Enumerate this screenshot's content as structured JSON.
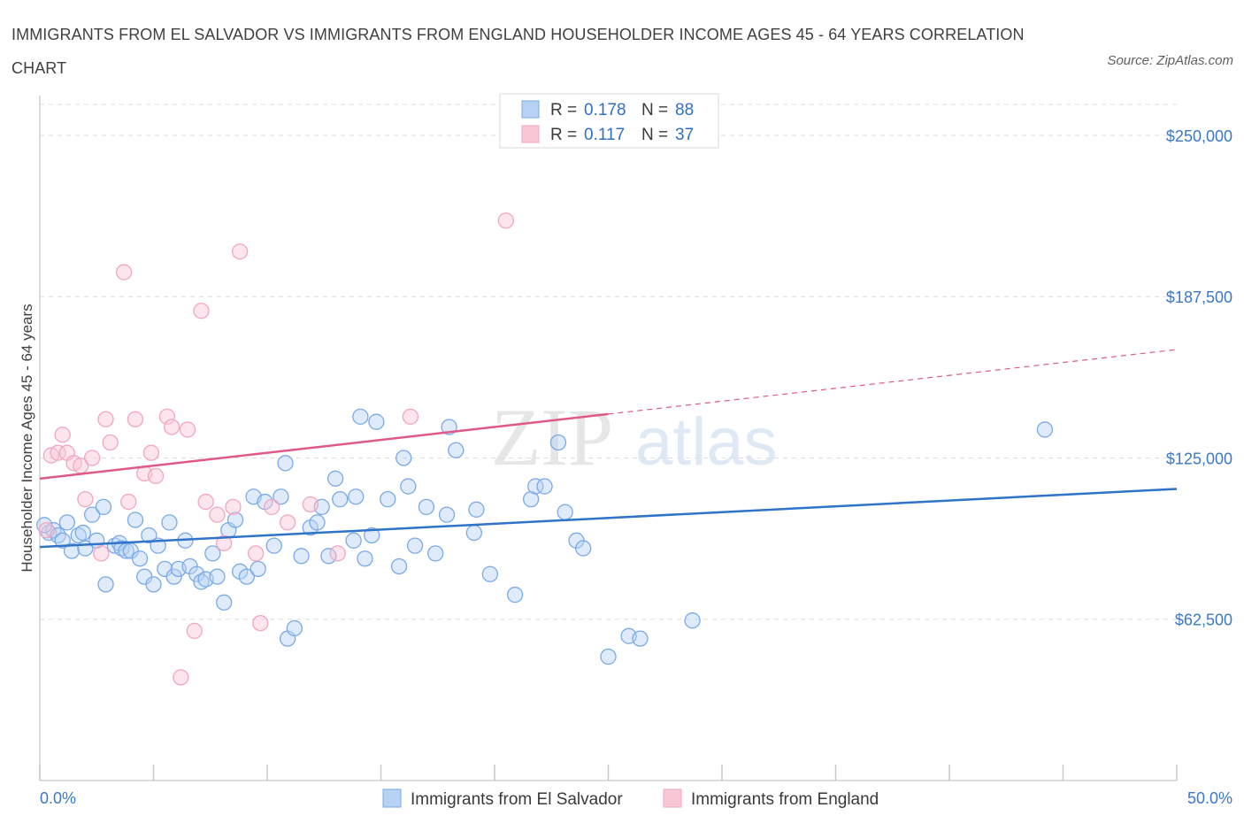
{
  "title": "IMMIGRANTS FROM EL SALVADOR VS IMMIGRANTS FROM ENGLAND HOUSEHOLDER INCOME AGES 45 - 64 YEARS CORRELATION CHART",
  "source": "Source: ZipAtlas.com",
  "watermark": {
    "zip": "ZIP",
    "atlas": "atlas"
  },
  "legend": {
    "r_label": "R =",
    "n_label": "N =",
    "rows": [
      {
        "r": "0.178",
        "n": "88"
      },
      {
        "r": "0.117",
        "n": "37"
      }
    ]
  },
  "chart_data": {
    "type": "scatter",
    "xlabel": "",
    "ylabel": "Householder Income Ages 45 - 64 years",
    "xlim": [
      0,
      50
    ],
    "ylim": [
      0,
      262000
    ],
    "x_tick_labels": {
      "left": "0.0%",
      "right": "50.0%"
    },
    "y_ticks": [
      {
        "value": 62500,
        "label": "$62,500"
      },
      {
        "value": 125000,
        "label": "$125,000"
      },
      {
        "value": 187500,
        "label": "$187,500"
      },
      {
        "value": 250000,
        "label": "$250,000"
      }
    ],
    "grid": "horizontal dashed",
    "series": [
      {
        "name": "Immigrants from El Salvador",
        "color": "#7aaae8",
        "line_color": "#2f74c8",
        "trend": {
          "x0": 0,
          "y0": 90500,
          "x1": 50,
          "y1": 113000,
          "solid_to": 50
        },
        "points": [
          [
            0.4,
            96000
          ],
          [
            0.6,
            97000
          ],
          [
            0.8,
            95000
          ],
          [
            1.0,
            93000
          ],
          [
            1.2,
            100000
          ],
          [
            1.4,
            89000
          ],
          [
            1.7,
            95000
          ],
          [
            1.9,
            96000
          ],
          [
            2.0,
            90000
          ],
          [
            2.3,
            103000
          ],
          [
            2.5,
            93000
          ],
          [
            2.8,
            106000
          ],
          [
            2.9,
            76000
          ],
          [
            3.3,
            91000
          ],
          [
            3.5,
            92000
          ],
          [
            3.6,
            90000
          ],
          [
            3.8,
            89000
          ],
          [
            4.0,
            89000
          ],
          [
            4.2,
            101000
          ],
          [
            4.4,
            86000
          ],
          [
            4.6,
            79000
          ],
          [
            4.8,
            95000
          ],
          [
            5.0,
            76000
          ],
          [
            5.2,
            91000
          ],
          [
            5.5,
            82000
          ],
          [
            5.7,
            100000
          ],
          [
            5.9,
            79000
          ],
          [
            6.1,
            82000
          ],
          [
            6.4,
            93000
          ],
          [
            6.6,
            83000
          ],
          [
            6.9,
            80000
          ],
          [
            7.1,
            77000
          ],
          [
            7.3,
            78000
          ],
          [
            7.6,
            88000
          ],
          [
            7.8,
            79000
          ],
          [
            8.1,
            69000
          ],
          [
            8.3,
            97000
          ],
          [
            8.6,
            101000
          ],
          [
            8.8,
            81000
          ],
          [
            9.1,
            79000
          ],
          [
            9.4,
            110000
          ],
          [
            9.6,
            82000
          ],
          [
            9.9,
            108000
          ],
          [
            10.3,
            91000
          ],
          [
            10.6,
            110000
          ],
          [
            10.8,
            123000
          ],
          [
            10.9,
            55000
          ],
          [
            11.2,
            59000
          ],
          [
            11.5,
            87000
          ],
          [
            11.9,
            98000
          ],
          [
            12.2,
            100000
          ],
          [
            12.4,
            106000
          ],
          [
            12.7,
            87000
          ],
          [
            13.0,
            117000
          ],
          [
            13.2,
            109000
          ],
          [
            13.8,
            93000
          ],
          [
            13.9,
            110000
          ],
          [
            14.1,
            141000
          ],
          [
            14.3,
            86000
          ],
          [
            14.6,
            95000
          ],
          [
            14.8,
            139000
          ],
          [
            15.3,
            109000
          ],
          [
            15.8,
            83000
          ],
          [
            16.0,
            125000
          ],
          [
            16.2,
            114000
          ],
          [
            16.5,
            91000
          ],
          [
            17.0,
            106000
          ],
          [
            17.4,
            88000
          ],
          [
            17.9,
            103000
          ],
          [
            18.0,
            137000
          ],
          [
            18.3,
            128000
          ],
          [
            19.1,
            96000
          ],
          [
            19.2,
            105000
          ],
          [
            19.8,
            80000
          ],
          [
            20.9,
            72000
          ],
          [
            21.6,
            109000
          ],
          [
            21.8,
            114000
          ],
          [
            22.2,
            114000
          ],
          [
            22.8,
            131000
          ],
          [
            23.1,
            104000
          ],
          [
            23.6,
            93000
          ],
          [
            23.9,
            90000
          ],
          [
            25.0,
            48000
          ],
          [
            25.9,
            56000
          ],
          [
            26.4,
            55000
          ],
          [
            28.7,
            62000
          ],
          [
            44.2,
            136000
          ],
          [
            0.2,
            99000
          ]
        ]
      },
      {
        "name": "Immigrants from England",
        "color": "#f2a6c0",
        "line_color": "#e0588a",
        "trend": {
          "x0": 0,
          "y0": 117000,
          "x1": 50,
          "y1": 167000,
          "solid_to": 25
        },
        "points": [
          [
            0.3,
            97000
          ],
          [
            0.5,
            126000
          ],
          [
            0.8,
            127000
          ],
          [
            1.0,
            134000
          ],
          [
            1.2,
            127000
          ],
          [
            1.5,
            123000
          ],
          [
            1.8,
            122000
          ],
          [
            2.0,
            109000
          ],
          [
            2.3,
            125000
          ],
          [
            2.7,
            88000
          ],
          [
            2.9,
            140000
          ],
          [
            3.1,
            131000
          ],
          [
            3.7,
            197000
          ],
          [
            3.9,
            108000
          ],
          [
            4.2,
            140000
          ],
          [
            4.6,
            119000
          ],
          [
            4.9,
            127000
          ],
          [
            5.1,
            118000
          ],
          [
            5.6,
            141000
          ],
          [
            5.8,
            137000
          ],
          [
            6.2,
            40000
          ],
          [
            6.5,
            136000
          ],
          [
            6.8,
            58000
          ],
          [
            7.1,
            182000
          ],
          [
            7.3,
            108000
          ],
          [
            7.8,
            103000
          ],
          [
            8.1,
            92000
          ],
          [
            8.5,
            106000
          ],
          [
            8.8,
            205000
          ],
          [
            9.5,
            88000
          ],
          [
            9.7,
            61000
          ],
          [
            10.2,
            106000
          ],
          [
            10.9,
            100000
          ],
          [
            11.9,
            107000
          ],
          [
            13.1,
            88000
          ],
          [
            16.3,
            141000
          ],
          [
            20.5,
            217000
          ]
        ]
      }
    ]
  },
  "bottom_legend": [
    {
      "label": "Immigrants from El Salvador"
    },
    {
      "label": "Immigrants from England"
    }
  ]
}
